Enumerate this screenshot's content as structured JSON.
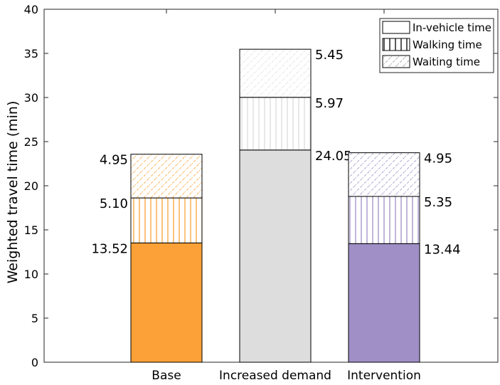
{
  "chart_data": {
    "type": "bar",
    "stacked": true,
    "ylabel": "Weighted travel time (min)",
    "ylim": [
      0,
      40
    ],
    "yticks": [
      0,
      5,
      10,
      15,
      20,
      25,
      30,
      35,
      40
    ],
    "categories": [
      "Base",
      "Increased demand",
      "Intervention"
    ],
    "category_colors": [
      "#FBA137",
      "#DDDDDD",
      "#A08FC6"
    ],
    "series": [
      {
        "name": "In-vehicle time",
        "pattern": "solid",
        "values": [
          13.52,
          24.05,
          13.44
        ],
        "labels": [
          "13.52",
          "24.05",
          "13.44"
        ]
      },
      {
        "name": "Walking time",
        "pattern": "vertical-lines",
        "values": [
          5.1,
          5.97,
          5.35
        ],
        "labels": [
          "5.10",
          "5.97",
          "5.35"
        ]
      },
      {
        "name": "Waiting time",
        "pattern": "diagonal-lines",
        "values": [
          4.95,
          5.45,
          4.95
        ],
        "labels": [
          "4.95",
          "5.45",
          "4.95"
        ]
      }
    ],
    "label_side": [
      "left",
      "right",
      "right"
    ],
    "legend_position": "top-right",
    "grid": false
  }
}
